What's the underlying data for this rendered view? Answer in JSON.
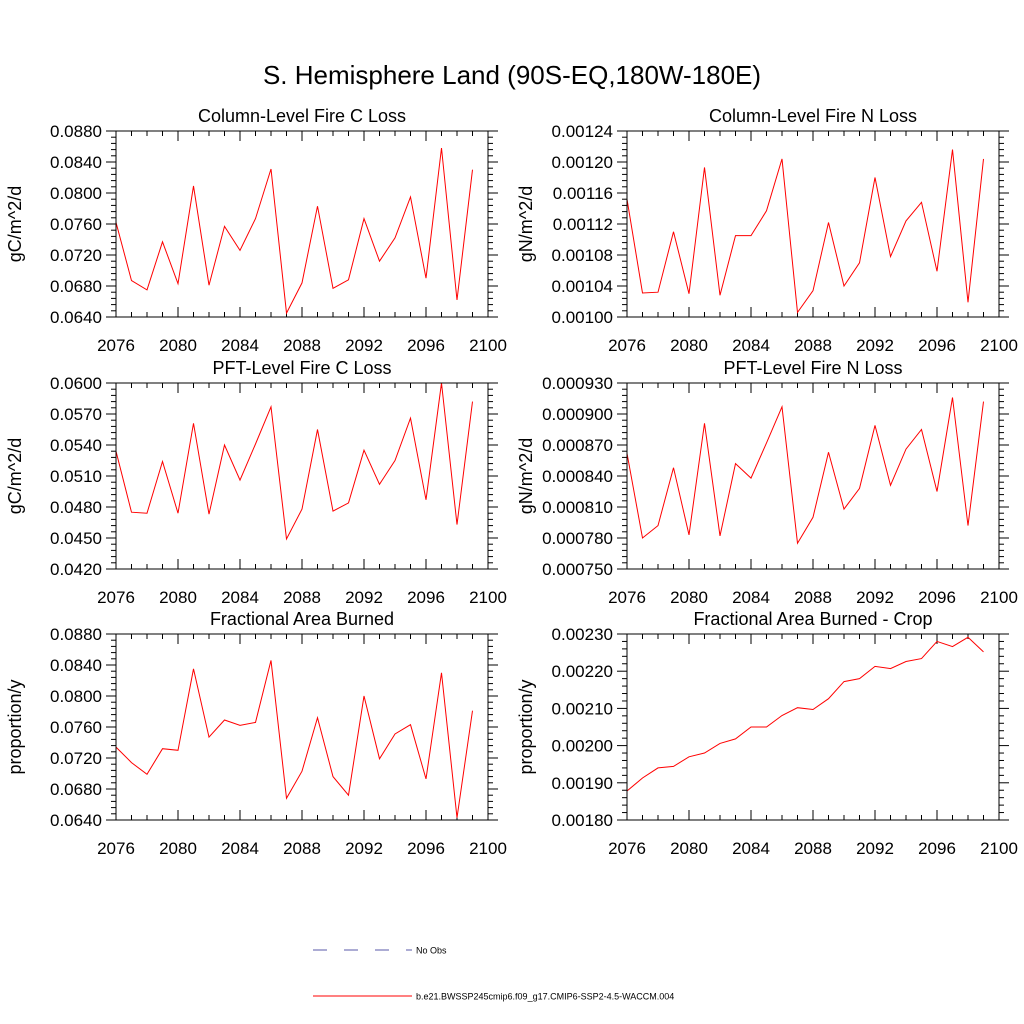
{
  "page_title": "S. Hemisphere Land (90S-EQ,180W-180E)",
  "legend": {
    "entries": [
      {
        "label": "No Obs",
        "color": "#5a5aa8",
        "style": "dashed"
      },
      {
        "label": "b.e21.BWSSP245cmip6.f09_g17.CMIP6-SSP2-4.5-WACCM.004",
        "color": "#ff0000",
        "style": "solid"
      }
    ]
  },
  "chart_data": [
    {
      "type": "line",
      "title": "Column-Level Fire C Loss",
      "ylabel": "gC/m^2/d",
      "xlim": [
        2076,
        2100
      ],
      "ylim": [
        0.064,
        0.088
      ],
      "xticks": [
        "2076",
        "2080",
        "2084",
        "2088",
        "2092",
        "2096",
        "2100"
      ],
      "yticks": [
        "0.0640",
        "0.0680",
        "0.0720",
        "0.0760",
        "0.0800",
        "0.0840",
        "0.0880"
      ],
      "series": [
        {
          "color": "#ff0000",
          "x": [
            2076,
            2077,
            2078,
            2079,
            2080,
            2081,
            2082,
            2083,
            2084,
            2085,
            2086,
            2087,
            2088,
            2089,
            2090,
            2091,
            2092,
            2093,
            2094,
            2095,
            2096,
            2097,
            2098,
            2099
          ],
          "y": [
            0.0762,
            0.0687,
            0.0675,
            0.0737,
            0.0683,
            0.0809,
            0.0681,
            0.0757,
            0.0726,
            0.0767,
            0.0831,
            0.0645,
            0.0684,
            0.0783,
            0.0677,
            0.0688,
            0.0767,
            0.0712,
            0.0742,
            0.0795,
            0.069,
            0.0858,
            0.0662,
            0.083
          ]
        }
      ]
    },
    {
      "type": "line",
      "title": "Column-Level Fire N Loss",
      "ylabel": "gN/m^2/d",
      "xlim": [
        2076,
        2100
      ],
      "ylim": [
        0.001,
        0.00124
      ],
      "xticks": [
        "2076",
        "2080",
        "2084",
        "2088",
        "2092",
        "2096",
        "2100"
      ],
      "yticks": [
        "0.00100",
        "0.00104",
        "0.00108",
        "0.00112",
        "0.00116",
        "0.00120",
        "0.00124"
      ],
      "series": [
        {
          "color": "#ff0000",
          "x": [
            2076,
            2077,
            2078,
            2079,
            2080,
            2081,
            2082,
            2083,
            2084,
            2085,
            2086,
            2087,
            2088,
            2089,
            2090,
            2091,
            2092,
            2093,
            2094,
            2095,
            2096,
            2097,
            2098,
            2099
          ],
          "y": [
            0.001152,
            0.001031,
            0.001032,
            0.00111,
            0.00103,
            0.001193,
            0.001028,
            0.001105,
            0.001105,
            0.001137,
            0.001204,
            0.001006,
            0.001034,
            0.001122,
            0.00104,
            0.00107,
            0.00118,
            0.001078,
            0.001124,
            0.001148,
            0.001059,
            0.001216,
            0.001019,
            0.001204
          ]
        }
      ]
    },
    {
      "type": "line",
      "title": "PFT-Level Fire C Loss",
      "ylabel": "gC/m^2/d",
      "xlim": [
        2076,
        2100
      ],
      "ylim": [
        0.042,
        0.06
      ],
      "xticks": [
        "2076",
        "2080",
        "2084",
        "2088",
        "2092",
        "2096",
        "2100"
      ],
      "yticks": [
        "0.0420",
        "0.0450",
        "0.0480",
        "0.0510",
        "0.0540",
        "0.0570",
        "0.0600"
      ],
      "series": [
        {
          "color": "#ff0000",
          "x": [
            2076,
            2077,
            2078,
            2079,
            2080,
            2081,
            2082,
            2083,
            2084,
            2085,
            2086,
            2087,
            2088,
            2089,
            2090,
            2091,
            2092,
            2093,
            2094,
            2095,
            2096,
            2097,
            2098,
            2099
          ],
          "y": [
            0.0534,
            0.0475,
            0.0474,
            0.0524,
            0.0474,
            0.0561,
            0.0473,
            0.054,
            0.0506,
            0.0541,
            0.0577,
            0.0449,
            0.0478,
            0.0555,
            0.0476,
            0.0484,
            0.0535,
            0.0502,
            0.0525,
            0.0566,
            0.0487,
            0.06,
            0.0463,
            0.0582
          ]
        }
      ]
    },
    {
      "type": "line",
      "title": "PFT-Level Fire N Loss",
      "ylabel": "gN/m^2/d",
      "xlim": [
        2076,
        2100
      ],
      "ylim": [
        0.00075,
        0.00093
      ],
      "xticks": [
        "2076",
        "2080",
        "2084",
        "2088",
        "2092",
        "2096",
        "2100"
      ],
      "yticks": [
        "0.000750",
        "0.000780",
        "0.000810",
        "0.000840",
        "0.000870",
        "0.000900",
        "0.000930"
      ],
      "series": [
        {
          "color": "#ff0000",
          "x": [
            2076,
            2077,
            2078,
            2079,
            2080,
            2081,
            2082,
            2083,
            2084,
            2085,
            2086,
            2087,
            2088,
            2089,
            2090,
            2091,
            2092,
            2093,
            2094,
            2095,
            2096,
            2097,
            2098,
            2099
          ],
          "y": [
            0.000862,
            0.00078,
            0.000792,
            0.000848,
            0.000783,
            0.000891,
            0.000782,
            0.000852,
            0.000838,
            0.000872,
            0.000907,
            0.000775,
            0.0008,
            0.000863,
            0.000808,
            0.000828,
            0.000889,
            0.000831,
            0.000866,
            0.000885,
            0.000825,
            0.000916,
            0.000792,
            0.000912
          ]
        }
      ]
    },
    {
      "type": "line",
      "title": "Fractional Area Burned",
      "ylabel": "proportion/y",
      "xlim": [
        2076,
        2100
      ],
      "ylim": [
        0.064,
        0.088
      ],
      "xticks": [
        "2076",
        "2080",
        "2084",
        "2088",
        "2092",
        "2096",
        "2100"
      ],
      "yticks": [
        "0.0640",
        "0.0680",
        "0.0720",
        "0.0760",
        "0.0800",
        "0.0840",
        "0.0880"
      ],
      "series": [
        {
          "color": "#ff0000",
          "x": [
            2076,
            2077,
            2078,
            2079,
            2080,
            2081,
            2082,
            2083,
            2084,
            2085,
            2086,
            2087,
            2088,
            2089,
            2090,
            2091,
            2092,
            2093,
            2094,
            2095,
            2096,
            2097,
            2098,
            2099
          ],
          "y": [
            0.0734,
            0.0714,
            0.0699,
            0.0732,
            0.073,
            0.0835,
            0.0747,
            0.0769,
            0.0762,
            0.0766,
            0.0846,
            0.0668,
            0.0703,
            0.0772,
            0.0696,
            0.0672,
            0.08,
            0.0719,
            0.0751,
            0.0763,
            0.0693,
            0.083,
            0.0643,
            0.0781
          ]
        }
      ]
    },
    {
      "type": "line",
      "title": "Fractional Area Burned - Crop",
      "ylabel": "proportion/y",
      "xlim": [
        2076,
        2100
      ],
      "ylim": [
        0.0018,
        0.0023
      ],
      "xticks": [
        "2076",
        "2080",
        "2084",
        "2088",
        "2092",
        "2096",
        "2100"
      ],
      "yticks": [
        "0.00180",
        "0.00190",
        "0.00200",
        "0.00210",
        "0.00220",
        "0.00230"
      ],
      "series": [
        {
          "color": "#ff0000",
          "x": [
            2076,
            2077,
            2078,
            2079,
            2080,
            2081,
            2082,
            2083,
            2084,
            2085,
            2086,
            2087,
            2088,
            2089,
            2090,
            2091,
            2092,
            2093,
            2094,
            2095,
            2096,
            2097,
            2098,
            2099
          ],
          "y": [
            0.001878,
            0.001913,
            0.00194,
            0.001944,
            0.00197,
            0.00198,
            0.002006,
            0.002018,
            0.00205,
            0.00205,
            0.002081,
            0.002102,
            0.002097,
            0.002126,
            0.002172,
            0.00218,
            0.002213,
            0.002207,
            0.002226,
            0.002234,
            0.00228,
            0.002266,
            0.002291,
            0.002252
          ]
        }
      ]
    }
  ]
}
